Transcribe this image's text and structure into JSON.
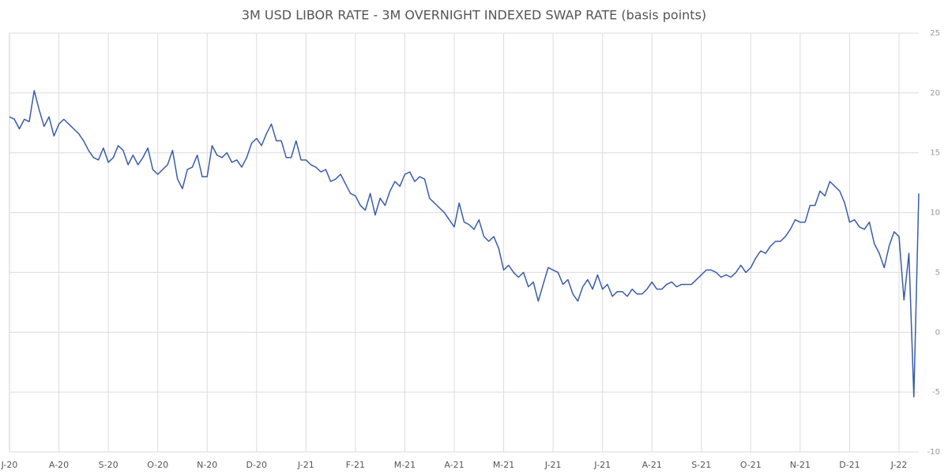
{
  "chart_data": {
    "type": "line",
    "title": "3M USD LIBOR RATE - 3M OVERNIGHT INDEXED SWAP RATE (basis points)",
    "categories": [
      "J-20",
      null,
      null,
      null,
      null,
      null,
      null,
      null,
      null,
      null,
      "A-20",
      null,
      null,
      null,
      null,
      null,
      null,
      null,
      null,
      null,
      "S-20",
      null,
      null,
      null,
      null,
      null,
      null,
      null,
      null,
      null,
      "O-20",
      null,
      null,
      null,
      null,
      null,
      null,
      null,
      null,
      null,
      "N-20",
      null,
      null,
      null,
      null,
      null,
      null,
      null,
      null,
      null,
      "D-20",
      null,
      null,
      null,
      null,
      null,
      null,
      null,
      null,
      null,
      "J-21",
      null,
      null,
      null,
      null,
      null,
      null,
      null,
      null,
      null,
      "F-21",
      null,
      null,
      null,
      null,
      null,
      null,
      null,
      null,
      null,
      "M-21",
      null,
      null,
      null,
      null,
      null,
      null,
      null,
      null,
      null,
      "A-21",
      null,
      null,
      null,
      null,
      null,
      null,
      null,
      null,
      null,
      "M-21",
      null,
      null,
      null,
      null,
      null,
      null,
      null,
      null,
      null,
      "J-21",
      null,
      null,
      null,
      null,
      null,
      null,
      null,
      null,
      null,
      "J-21",
      null,
      null,
      null,
      null,
      null,
      null,
      null,
      null,
      null,
      "A-21",
      null,
      null,
      null,
      null,
      null,
      null,
      null,
      null,
      null,
      "S-21",
      null,
      null,
      null,
      null,
      null,
      null,
      null,
      null,
      null,
      "O-21",
      null,
      null,
      null,
      null,
      null,
      null,
      null,
      null,
      null,
      "N-21",
      null,
      null,
      null,
      null,
      null,
      null,
      null,
      null,
      null,
      "D-21",
      null,
      null,
      null,
      null,
      null,
      null,
      null,
      null,
      null,
      "J-22",
      null,
      null,
      null,
      null
    ],
    "values": [
      18.0,
      17.8,
      17.0,
      17.8,
      17.6,
      20.2,
      18.6,
      17.2,
      18.0,
      16.4,
      17.4,
      17.8,
      17.4,
      17.0,
      16.6,
      16.0,
      15.2,
      14.6,
      14.4,
      15.4,
      14.2,
      14.6,
      15.6,
      15.2,
      14.0,
      14.8,
      14.0,
      14.6,
      15.4,
      13.6,
      13.2,
      13.6,
      14.0,
      15.2,
      12.8,
      12.0,
      13.6,
      13.8,
      14.8,
      13.0,
      13.0,
      15.6,
      14.8,
      14.6,
      15.0,
      14.2,
      14.4,
      13.8,
      14.6,
      15.8,
      16.2,
      15.6,
      16.6,
      17.4,
      16.0,
      16.0,
      14.6,
      14.6,
      16.0,
      14.4,
      14.4,
      14.0,
      13.8,
      13.4,
      13.6,
      12.6,
      12.8,
      13.2,
      12.4,
      11.6,
      11.4,
      10.6,
      10.2,
      11.6,
      9.8,
      11.2,
      10.6,
      11.8,
      12.6,
      12.2,
      13.2,
      13.4,
      12.6,
      13.0,
      12.8,
      11.2,
      10.8,
      10.4,
      10.0,
      9.4,
      8.8,
      10.8,
      9.2,
      9.0,
      8.6,
      9.4,
      8.0,
      7.6,
      8.0,
      7.0,
      5.2,
      5.6,
      5.0,
      4.6,
      5.0,
      3.8,
      4.2,
      2.6,
      4.0,
      5.4,
      5.2,
      5.0,
      4.0,
      4.4,
      3.2,
      2.6,
      3.8,
      4.4,
      3.6,
      4.8,
      3.6,
      4.0,
      3.0,
      3.4,
      3.4,
      3.0,
      3.6,
      3.2,
      3.2,
      3.6,
      4.2,
      3.6,
      3.6,
      4.0,
      4.2,
      3.8,
      4.0,
      4.0,
      4.0,
      4.4,
      4.8,
      5.2,
      5.2,
      5.0,
      4.6,
      4.8,
      4.6,
      5.0,
      5.6,
      5.0,
      5.4,
      6.2,
      6.8,
      6.6,
      7.2,
      7.6,
      7.6,
      8.0,
      8.6,
      9.4,
      9.2,
      9.2,
      10.6,
      10.6,
      11.8,
      11.4,
      12.6,
      12.2,
      11.8,
      10.8,
      9.2,
      9.4,
      8.8,
      8.6,
      9.2,
      7.4,
      6.6,
      5.4,
      7.2,
      8.4,
      8.0,
      2.7,
      6.6,
      -5.4,
      11.6
    ],
    "color": "#3a5ca8",
    "ylim": [
      -10,
      25
    ],
    "yticks": [
      -10,
      -5,
      0,
      5,
      10,
      15,
      20,
      25
    ],
    "grid": true
  }
}
